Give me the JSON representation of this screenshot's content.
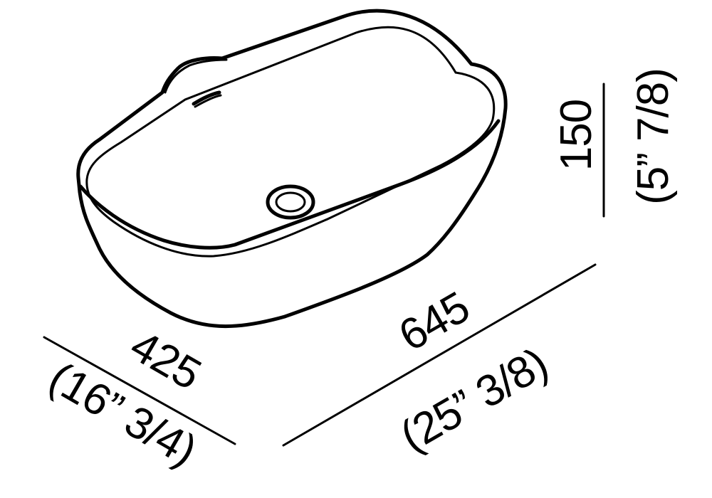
{
  "dimensions": {
    "width": {
      "mm": "645",
      "inches": "(25” 3/8)"
    },
    "depth": {
      "mm": "425",
      "inches": "(16” 3/4)"
    },
    "height": {
      "mm": "150",
      "inches": "(5” 7/8)"
    }
  },
  "icons": {
    "basin": "washbasin-outline-icon",
    "drain": "drain-icon",
    "overflow": "overflow-slot-icon"
  },
  "colors": {
    "line": "#000000",
    "background": "#ffffff"
  }
}
